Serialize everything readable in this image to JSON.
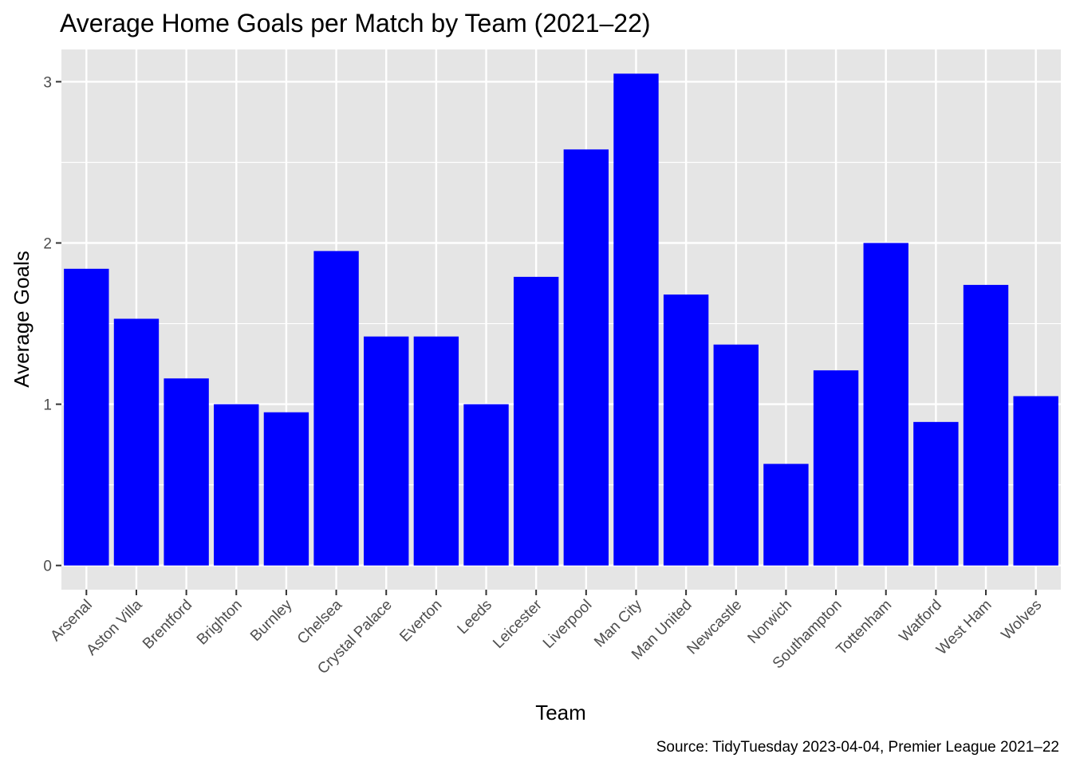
{
  "chart_data": {
    "type": "bar",
    "title": "Average Home Goals per Match by Team (2021–22)",
    "xlabel": "Team",
    "ylabel": "Average Goals",
    "caption": "Source: TidyTuesday 2023-04-04, Premier League 2021–22",
    "categories": [
      "Arsenal",
      "Aston Villa",
      "Brentford",
      "Brighton",
      "Burnley",
      "Chelsea",
      "Crystal Palace",
      "Everton",
      "Leeds",
      "Leicester",
      "Liverpool",
      "Man City",
      "Man United",
      "Newcastle",
      "Norwich",
      "Southampton",
      "Tottenham",
      "Watford",
      "West Ham",
      "Wolves"
    ],
    "values": [
      1.84,
      1.53,
      1.16,
      1.0,
      0.95,
      1.95,
      1.42,
      1.42,
      1.0,
      1.79,
      2.58,
      3.05,
      1.68,
      1.37,
      0.63,
      1.21,
      2.0,
      0.89,
      1.74,
      1.05
    ],
    "y_ticks": [
      0,
      1,
      2,
      3
    ],
    "ylim": [
      -0.15,
      3.2
    ],
    "grid": true,
    "bar_color": "#0000ff",
    "panel_color": "#e5e5e5",
    "grid_color": "#ffffff",
    "legend": "none"
  }
}
